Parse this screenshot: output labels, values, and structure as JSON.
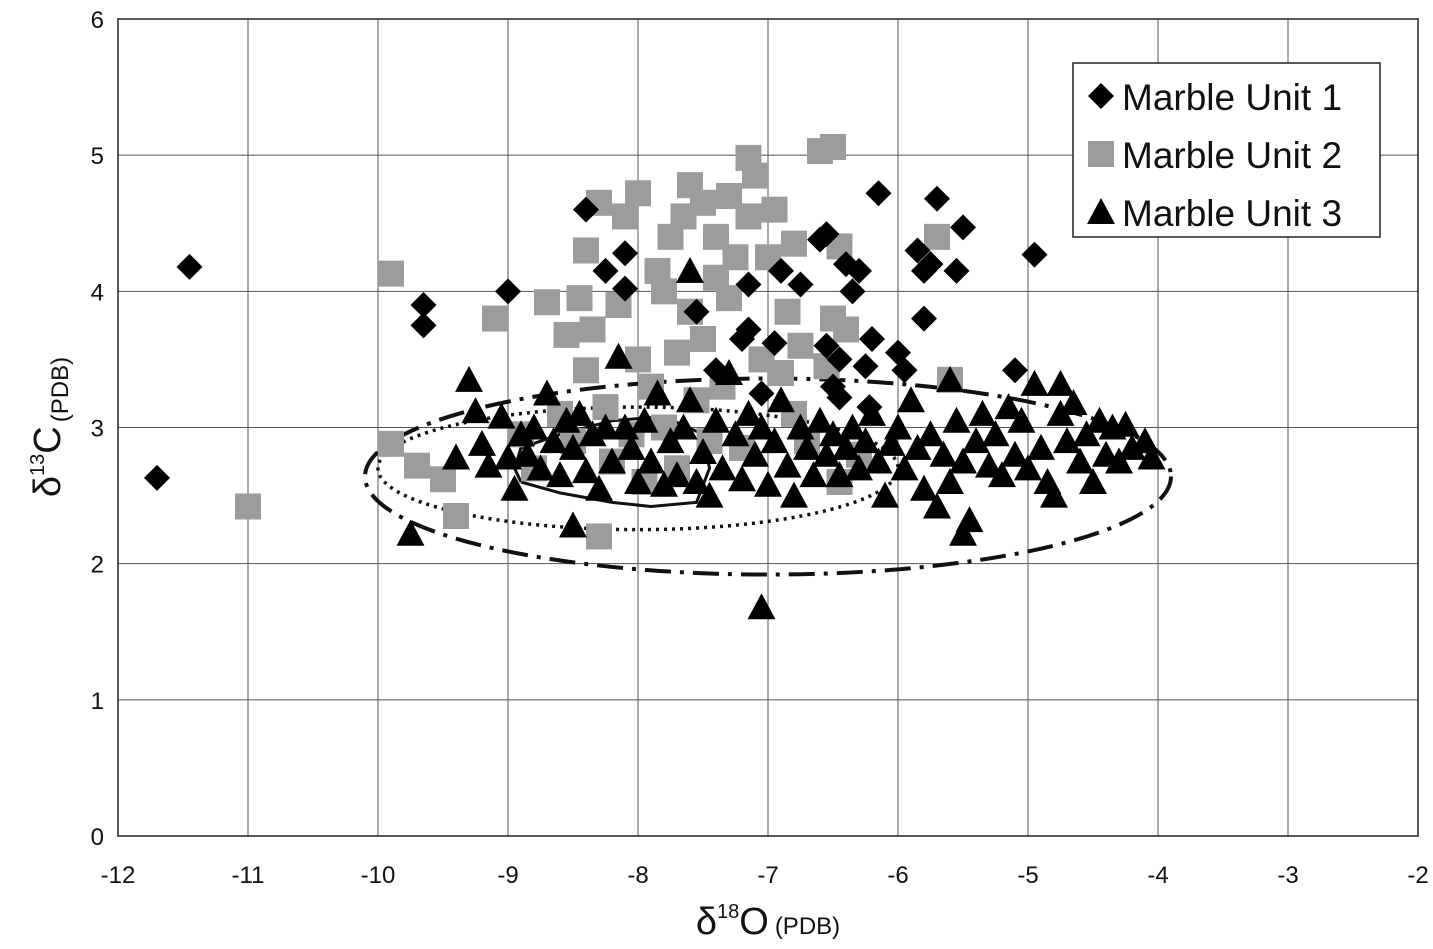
{
  "chart_data": {
    "type": "scatter",
    "xlabel": {
      "symbol": "δ",
      "sup": "18",
      "base": "O",
      "sub": "(PDB)"
    },
    "ylabel": {
      "symbol": "δ",
      "sup": "13",
      "base": "C",
      "sub": "(PDB)"
    },
    "xlim": [
      -12,
      -2
    ],
    "ylim": [
      0,
      6
    ],
    "xticks": [
      -12,
      -11,
      -10,
      -9,
      -8,
      -7,
      -6,
      -5,
      -4,
      -3,
      -2
    ],
    "yticks": [
      0,
      1,
      2,
      3,
      4,
      5,
      6
    ],
    "grid": true,
    "legend_position": "top-right",
    "series": [
      {
        "name": "Marble Unit 1",
        "marker": "diamond",
        "color": "#000000",
        "points": [
          [
            -11.7,
            2.63
          ],
          [
            -11.45,
            4.18
          ],
          [
            -9.65,
            3.9
          ],
          [
            -9.65,
            3.75
          ],
          [
            -9.0,
            4.0
          ],
          [
            -8.4,
            4.6
          ],
          [
            -8.25,
            4.15
          ],
          [
            -8.1,
            4.28
          ],
          [
            -8.1,
            4.02
          ],
          [
            -7.55,
            3.85
          ],
          [
            -7.4,
            3.42
          ],
          [
            -7.2,
            3.65
          ],
          [
            -7.15,
            4.05
          ],
          [
            -7.15,
            3.72
          ],
          [
            -7.05,
            3.25
          ],
          [
            -6.95,
            3.62
          ],
          [
            -6.9,
            4.15
          ],
          [
            -6.75,
            4.05
          ],
          [
            -6.6,
            4.38
          ],
          [
            -6.55,
            4.42
          ],
          [
            -6.55,
            3.6
          ],
          [
            -6.5,
            3.3
          ],
          [
            -6.45,
            3.22
          ],
          [
            -6.45,
            3.5
          ],
          [
            -6.4,
            4.2
          ],
          [
            -6.35,
            4.0
          ],
          [
            -6.3,
            4.15
          ],
          [
            -6.25,
            3.45
          ],
          [
            -6.22,
            3.15
          ],
          [
            -6.2,
            3.65
          ],
          [
            -6.15,
            4.72
          ],
          [
            -6.0,
            3.55
          ],
          [
            -5.95,
            3.42
          ],
          [
            -5.85,
            4.3
          ],
          [
            -5.8,
            4.15
          ],
          [
            -5.8,
            3.8
          ],
          [
            -5.75,
            4.2
          ],
          [
            -5.7,
            4.68
          ],
          [
            -5.55,
            4.15
          ],
          [
            -5.5,
            4.47
          ],
          [
            -5.1,
            3.42
          ],
          [
            -4.95,
            4.27
          ]
        ]
      },
      {
        "name": "Marble Unit 2",
        "marker": "square",
        "color": "#9c9c9c",
        "points": [
          [
            -11.0,
            2.42
          ],
          [
            -9.9,
            4.13
          ],
          [
            -9.9,
            2.88
          ],
          [
            -9.7,
            2.72
          ],
          [
            -9.5,
            2.62
          ],
          [
            -9.4,
            2.35
          ],
          [
            -9.1,
            3.8
          ],
          [
            -8.9,
            2.95
          ],
          [
            -8.8,
            2.7
          ],
          [
            -8.7,
            3.92
          ],
          [
            -8.6,
            3.1
          ],
          [
            -8.55,
            3.68
          ],
          [
            -8.5,
            2.9
          ],
          [
            -8.45,
            3.95
          ],
          [
            -8.4,
            4.3
          ],
          [
            -8.4,
            3.42
          ],
          [
            -8.35,
            3.72
          ],
          [
            -8.3,
            4.65
          ],
          [
            -8.3,
            2.2
          ],
          [
            -8.25,
            3.15
          ],
          [
            -8.2,
            2.75
          ],
          [
            -8.15,
            3.9
          ],
          [
            -8.1,
            4.55
          ],
          [
            -8.05,
            2.95
          ],
          [
            -8.0,
            4.72
          ],
          [
            -8.0,
            3.5
          ],
          [
            -7.95,
            2.6
          ],
          [
            -7.9,
            3.3
          ],
          [
            -7.85,
            4.15
          ],
          [
            -7.8,
            3.0
          ],
          [
            -7.8,
            4.0
          ],
          [
            -7.75,
            4.4
          ],
          [
            -7.7,
            3.55
          ],
          [
            -7.7,
            2.7
          ],
          [
            -7.65,
            4.55
          ],
          [
            -7.6,
            4.78
          ],
          [
            -7.6,
            3.85
          ],
          [
            -7.55,
            3.2
          ],
          [
            -7.5,
            4.65
          ],
          [
            -7.5,
            3.65
          ],
          [
            -7.45,
            2.9
          ],
          [
            -7.4,
            4.4
          ],
          [
            -7.4,
            4.1
          ],
          [
            -7.35,
            3.3
          ],
          [
            -7.3,
            4.7
          ],
          [
            -7.3,
            3.95
          ],
          [
            -7.25,
            4.25
          ],
          [
            -7.2,
            2.85
          ],
          [
            -7.15,
            4.98
          ],
          [
            -7.15,
            4.55
          ],
          [
            -7.1,
            4.85
          ],
          [
            -7.05,
            3.5
          ],
          [
            -7.0,
            4.25
          ],
          [
            -6.95,
            4.6
          ],
          [
            -6.9,
            3.4
          ],
          [
            -6.85,
            3.85
          ],
          [
            -6.8,
            3.1
          ],
          [
            -6.8,
            4.35
          ],
          [
            -6.75,
            3.6
          ],
          [
            -6.7,
            2.9
          ],
          [
            -6.6,
            5.03
          ],
          [
            -6.55,
            3.45
          ],
          [
            -6.5,
            5.06
          ],
          [
            -6.5,
            3.8
          ],
          [
            -6.45,
            4.33
          ],
          [
            -6.45,
            2.6
          ],
          [
            -6.4,
            3.72
          ],
          [
            -6.3,
            2.8
          ],
          [
            -5.7,
            4.4
          ],
          [
            -5.6,
            3.35
          ]
        ]
      },
      {
        "name": "Marble Unit 3",
        "marker": "triangle",
        "color": "#000000",
        "points": [
          [
            -9.75,
            2.22
          ],
          [
            -9.4,
            2.78
          ],
          [
            -9.3,
            3.35
          ],
          [
            -9.25,
            3.12
          ],
          [
            -9.2,
            2.88
          ],
          [
            -9.15,
            2.72
          ],
          [
            -9.05,
            3.08
          ],
          [
            -9.0,
            2.78
          ],
          [
            -8.95,
            2.55
          ],
          [
            -8.9,
            2.95
          ],
          [
            -8.85,
            2.8
          ],
          [
            -8.8,
            3.0
          ],
          [
            -8.75,
            2.7
          ],
          [
            -8.7,
            3.25
          ],
          [
            -8.65,
            2.9
          ],
          [
            -8.6,
            2.65
          ],
          [
            -8.55,
            3.05
          ],
          [
            -8.5,
            2.28
          ],
          [
            -8.5,
            2.85
          ],
          [
            -8.45,
            3.1
          ],
          [
            -8.4,
            2.68
          ],
          [
            -8.35,
            2.95
          ],
          [
            -8.3,
            2.55
          ],
          [
            -8.25,
            3.0
          ],
          [
            -8.2,
            2.75
          ],
          [
            -8.15,
            3.52
          ],
          [
            -8.1,
            3.0
          ],
          [
            -8.05,
            2.85
          ],
          [
            -8.0,
            2.6
          ],
          [
            -7.95,
            3.05
          ],
          [
            -7.9,
            2.75
          ],
          [
            -7.85,
            3.25
          ],
          [
            -7.8,
            2.58
          ],
          [
            -7.75,
            2.9
          ],
          [
            -7.7,
            2.65
          ],
          [
            -7.65,
            3.0
          ],
          [
            -7.6,
            4.15
          ],
          [
            -7.6,
            3.2
          ],
          [
            -7.55,
            2.6
          ],
          [
            -7.5,
            2.82
          ],
          [
            -7.45,
            2.5
          ],
          [
            -7.4,
            3.05
          ],
          [
            -7.35,
            2.7
          ],
          [
            -7.3,
            3.4
          ],
          [
            -7.25,
            2.95
          ],
          [
            -7.2,
            2.62
          ],
          [
            -7.15,
            3.1
          ],
          [
            -7.1,
            2.8
          ],
          [
            -7.05,
            1.68
          ],
          [
            -7.05,
            3.0
          ],
          [
            -7.0,
            2.58
          ],
          [
            -6.95,
            2.9
          ],
          [
            -6.9,
            3.2
          ],
          [
            -6.85,
            2.72
          ],
          [
            -6.8,
            2.5
          ],
          [
            -6.75,
            3.0
          ],
          [
            -6.7,
            2.85
          ],
          [
            -6.65,
            2.65
          ],
          [
            -6.6,
            3.05
          ],
          [
            -6.55,
            2.8
          ],
          [
            -6.5,
            2.95
          ],
          [
            -6.45,
            2.65
          ],
          [
            -6.4,
            2.85
          ],
          [
            -6.35,
            3.0
          ],
          [
            -6.3,
            2.7
          ],
          [
            -6.25,
            2.9
          ],
          [
            -6.2,
            3.1
          ],
          [
            -6.15,
            2.75
          ],
          [
            -6.1,
            2.5
          ],
          [
            -6.05,
            2.88
          ],
          [
            -6.0,
            3.0
          ],
          [
            -5.95,
            2.7
          ],
          [
            -5.9,
            3.2
          ],
          [
            -5.85,
            2.85
          ],
          [
            -5.8,
            2.55
          ],
          [
            -5.75,
            2.95
          ],
          [
            -5.7,
            2.42
          ],
          [
            -5.65,
            2.8
          ],
          [
            -5.6,
            3.35
          ],
          [
            -5.6,
            2.6
          ],
          [
            -5.55,
            3.05
          ],
          [
            -5.5,
            2.22
          ],
          [
            -5.5,
            2.75
          ],
          [
            -5.45,
            2.32
          ],
          [
            -5.4,
            2.9
          ],
          [
            -5.35,
            3.1
          ],
          [
            -5.3,
            2.72
          ],
          [
            -5.25,
            2.95
          ],
          [
            -5.2,
            2.65
          ],
          [
            -5.15,
            3.15
          ],
          [
            -5.1,
            2.8
          ],
          [
            -5.05,
            3.05
          ],
          [
            -5.0,
            2.7
          ],
          [
            -4.95,
            3.32
          ],
          [
            -4.9,
            2.85
          ],
          [
            -4.85,
            2.6
          ],
          [
            -4.8,
            2.5
          ],
          [
            -4.75,
            3.32
          ],
          [
            -4.75,
            3.1
          ],
          [
            -4.7,
            2.9
          ],
          [
            -4.65,
            3.18
          ],
          [
            -4.6,
            2.75
          ],
          [
            -4.55,
            2.95
          ],
          [
            -4.5,
            2.6
          ],
          [
            -4.45,
            3.05
          ],
          [
            -4.4,
            2.8
          ],
          [
            -4.35,
            3.0
          ],
          [
            -4.3,
            2.75
          ],
          [
            -4.25,
            3.02
          ],
          [
            -4.2,
            2.85
          ],
          [
            -4.1,
            2.9
          ],
          [
            -4.05,
            2.78
          ]
        ]
      }
    ],
    "outlines": [
      {
        "name": "dash-dot-ellipse",
        "style": "dashdot",
        "cx": -7.0,
        "cy": 2.64,
        "rx": 3.1,
        "ry": 0.72
      },
      {
        "name": "dotted-ellipse",
        "style": "dotted",
        "cx": -8.0,
        "cy": 2.7,
        "rx": 2.0,
        "ry": 0.45
      },
      {
        "name": "solid-outline",
        "style": "solid",
        "path": [
          [
            -8.9,
            2.6
          ],
          [
            -8.6,
            2.52
          ],
          [
            -8.2,
            2.45
          ],
          [
            -7.9,
            2.42
          ],
          [
            -7.55,
            2.45
          ],
          [
            -7.45,
            2.7
          ],
          [
            -7.5,
            2.95
          ],
          [
            -7.8,
            3.08
          ],
          [
            -8.2,
            3.05
          ],
          [
            -8.6,
            2.95
          ],
          [
            -8.9,
            2.85
          ],
          [
            -8.95,
            2.7
          ],
          [
            -8.9,
            2.6
          ]
        ]
      }
    ]
  }
}
